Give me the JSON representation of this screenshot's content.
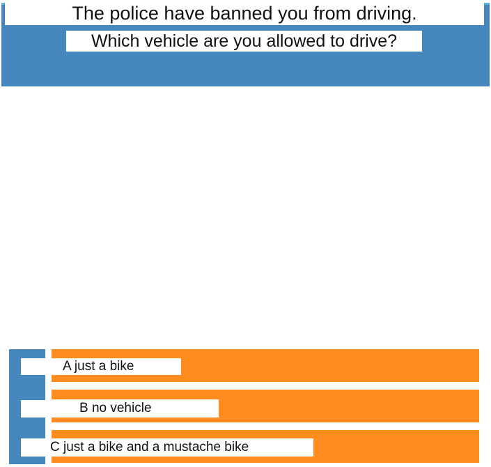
{
  "question": {
    "line1": "The police have banned you from driving.",
    "line2": "Which vehicle are you allowed to drive?"
  },
  "answers": [
    {
      "label": "A just a bike"
    },
    {
      "label": "B no vehicle"
    },
    {
      "label": "C just a bike and a mustache bike"
    }
  ],
  "colors": {
    "panel_blue": "#4586bc",
    "answer_orange": "#ff8c1e",
    "accent_line": "#56b4e4"
  }
}
